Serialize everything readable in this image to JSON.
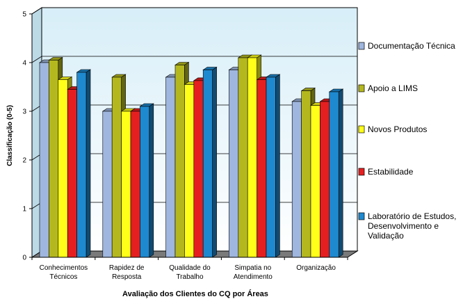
{
  "chart_data": {
    "type": "bar",
    "title": "",
    "xlabel": "Avaliação dos Clientes do CQ por Áreas",
    "ylabel": "Classificação (0-5)",
    "ylim": [
      0,
      5
    ],
    "yticks": [
      "0",
      "1",
      "2",
      "3",
      "4",
      "5"
    ],
    "grid": true,
    "legend_position": "right",
    "background_gradient": [
      "#ffffff",
      "#d7eef8"
    ],
    "categories": [
      [
        "Conhecimentos",
        "Técnicos"
      ],
      [
        "Rapidez de",
        "Resposta"
      ],
      [
        "Qualidade do",
        "Trabalho"
      ],
      [
        "Simpatia no",
        "Atendimento"
      ],
      [
        "Organização"
      ]
    ],
    "series": [
      {
        "name": [
          "Documentação Técnica"
        ],
        "color": "#9fb6de",
        "values": [
          4.0,
          3.0,
          3.7,
          3.85,
          3.2
        ]
      },
      {
        "name": [
          "Apoio a LIMS"
        ],
        "color": "#b4b81e",
        "values": [
          4.05,
          3.7,
          3.95,
          4.1,
          3.42
        ]
      },
      {
        "name": [
          "Novos Produtos"
        ],
        "color": "#ffff19",
        "values": [
          3.65,
          3.0,
          3.55,
          4.1,
          3.12
        ]
      },
      {
        "name": [
          "Estabilidade"
        ],
        "color": "#e51f20",
        "values": [
          3.45,
          3.0,
          3.63,
          3.65,
          3.2
        ]
      },
      {
        "name": [
          "Laboratório de Estudos,",
          "Desenvolvimento e",
          "Validação"
        ],
        "color": "#1e89cf",
        "values": [
          3.8,
          3.1,
          3.85,
          3.7,
          3.4
        ]
      }
    ]
  }
}
